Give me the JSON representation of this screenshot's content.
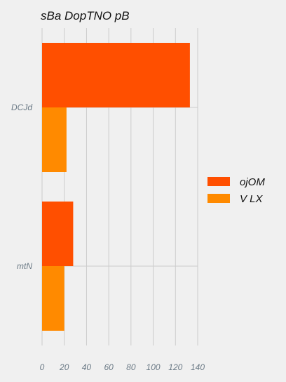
{
  "chart_data": {
    "type": "bar",
    "orientation": "horizontal",
    "title": "sBa DopTNO pB",
    "categories": [
      "DCJd",
      "mtN"
    ],
    "series": [
      {
        "name": "ojOM",
        "values": [
          133,
          28
        ],
        "color": "#ff4f00"
      },
      {
        "name": "V LX",
        "values": [
          22,
          20
        ],
        "color": "#ff8a00"
      }
    ],
    "xlim": [
      0,
      140
    ],
    "xticks": [
      "0",
      "20",
      "40",
      "60",
      "80",
      "100",
      "120",
      "140"
    ],
    "grid": "vertical",
    "legend_position": "right"
  },
  "colors": {
    "background": "#f0f0f0",
    "grid": "#cccccc",
    "tick_text": "#6b7a86"
  }
}
